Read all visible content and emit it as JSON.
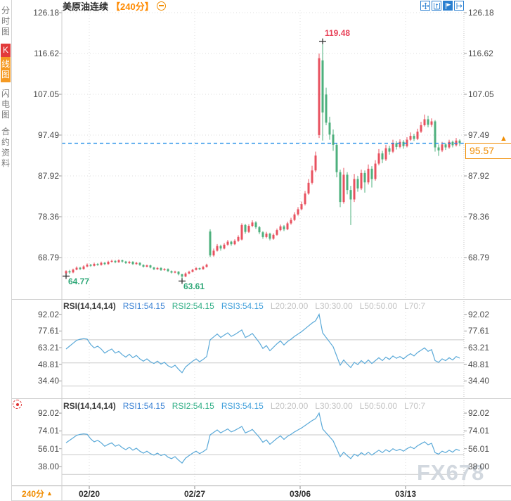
{
  "header": {
    "symbol": "美原油连续",
    "period": "【240分】"
  },
  "sidebar": {
    "tabs": [
      {
        "label": "分时图",
        "active": false
      },
      {
        "label_head": "K",
        "label_rest": "线图",
        "active": true
      },
      {
        "label": "闪电图",
        "active": false
      },
      {
        "label": "合约资料",
        "active": false
      }
    ]
  },
  "toolbar": {
    "icons": [
      "pan",
      "axis-range",
      "draw-tool",
      "exit"
    ]
  },
  "rsi_header": {
    "title": "RSI(14,14,14)",
    "rsi1": "RSI1:54.15",
    "rsi2": "RSI2:54.15",
    "rsi3": "RSI3:54.15",
    "l20": "L20:20.00",
    "l30": "L30:30.00",
    "l50": "L50:50.00",
    "l70": "L70:7"
  },
  "price_tag": {
    "value": "95.57"
  },
  "bottom": {
    "period_label": "240分",
    "dropdown_arrow": "▲"
  },
  "watermark": "FX678",
  "colors": {
    "up": "#e8515f",
    "down": "#4eb07d",
    "rsi_line": "#5aa9d8",
    "dashed_line": "#1f8ce8",
    "accent_orange": "#f08c00",
    "annotation_red": "#e8435a",
    "annotation_green": "#2fa878",
    "tab_red": "#e23b3b",
    "tab_orange": "#f59a23",
    "icon_blue": "#2a7fd0",
    "grid_dot": "#dedede",
    "grid_solid": "#c9c9c9",
    "border": "#cfcfcf",
    "axis_text": "#4a4a4a",
    "marker": "#333333"
  },
  "chart_data": {
    "type": "candlestick",
    "title": "美原油连续 240分 K线图",
    "interval": "240分",
    "price_axis_ticks": [
      126.18,
      116.62,
      107.05,
      97.49,
      87.92,
      78.36,
      68.79
    ],
    "last_price": 95.57,
    "annotations": {
      "high": {
        "label": "119.48",
        "price": 119.48,
        "bar": 73
      },
      "low1": {
        "label": "64.77",
        "price": 64.77,
        "bar": 0
      },
      "low2": {
        "label": "63.61",
        "price": 63.61,
        "bar": 33
      }
    },
    "date_ticks": [
      {
        "label": "02/20",
        "bar": 6.6
      },
      {
        "label": "02/27",
        "bar": 36.6
      },
      {
        "label": "03/06",
        "bar": 66.6
      },
      {
        "label": "03/13",
        "bar": 96.6
      }
    ],
    "candles_ohlc": [
      [
        65.1,
        65.8,
        64.77,
        65.6
      ],
      [
        65.6,
        65.9,
        65.0,
        65.3
      ],
      [
        65.3,
        66.2,
        65.1,
        65.95
      ],
      [
        65.95,
        66.7,
        65.8,
        66.4
      ],
      [
        66.4,
        66.6,
        65.85,
        66.1
      ],
      [
        66.1,
        66.95,
        65.95,
        66.7
      ],
      [
        66.7,
        67.4,
        66.5,
        67.1
      ],
      [
        67.1,
        67.3,
        66.6,
        66.85
      ],
      [
        66.85,
        67.6,
        66.7,
        67.3
      ],
      [
        67.3,
        67.5,
        66.85,
        67.05
      ],
      [
        67.05,
        67.85,
        66.9,
        67.55
      ],
      [
        67.55,
        67.75,
        67.0,
        67.25
      ],
      [
        67.25,
        68.05,
        67.1,
        67.8
      ],
      [
        67.8,
        68.3,
        67.6,
        68.0
      ],
      [
        68.0,
        68.2,
        67.45,
        67.7
      ],
      [
        67.7,
        68.35,
        67.55,
        68.15
      ],
      [
        68.15,
        68.3,
        67.6,
        67.85
      ],
      [
        67.85,
        68.0,
        67.3,
        67.5
      ],
      [
        67.5,
        68.0,
        67.3,
        67.8
      ],
      [
        67.8,
        67.95,
        67.05,
        67.25
      ],
      [
        67.25,
        67.8,
        67.1,
        67.55
      ],
      [
        67.55,
        67.7,
        66.85,
        67.05
      ],
      [
        67.05,
        67.2,
        66.45,
        66.65
      ],
      [
        66.65,
        67.15,
        66.5,
        66.95
      ],
      [
        66.95,
        67.1,
        66.25,
        66.45
      ],
      [
        66.45,
        66.6,
        65.85,
        66.05
      ],
      [
        66.05,
        66.55,
        65.9,
        66.35
      ],
      [
        66.35,
        66.5,
        65.65,
        65.85
      ],
      [
        65.85,
        66.3,
        65.7,
        66.1
      ],
      [
        66.1,
        66.25,
        65.4,
        65.6
      ],
      [
        65.6,
        65.75,
        65.05,
        65.25
      ],
      [
        65.25,
        65.7,
        65.1,
        65.5
      ],
      [
        65.5,
        65.6,
        64.6,
        64.9
      ],
      [
        64.9,
        65.0,
        63.61,
        64.35
      ],
      [
        64.35,
        65.3,
        64.2,
        65.05
      ],
      [
        65.05,
        65.7,
        64.9,
        65.45
      ],
      [
        65.45,
        66.15,
        65.3,
        65.9
      ],
      [
        65.9,
        66.55,
        65.75,
        66.3
      ],
      [
        66.3,
        66.45,
        65.85,
        66.05
      ],
      [
        66.05,
        66.85,
        65.95,
        66.6
      ],
      [
        66.6,
        67.35,
        66.45,
        67.1
      ],
      [
        74.9,
        75.4,
        68.9,
        69.3
      ],
      [
        69.3,
        70.9,
        69.0,
        70.4
      ],
      [
        70.4,
        71.95,
        70.2,
        71.5
      ],
      [
        71.5,
        71.8,
        70.4,
        70.9
      ],
      [
        70.9,
        72.2,
        70.7,
        71.8
      ],
      [
        71.8,
        72.9,
        71.55,
        72.5
      ],
      [
        72.5,
        72.75,
        71.55,
        71.9
      ],
      [
        71.9,
        73.05,
        71.7,
        72.7
      ],
      [
        72.7,
        74.0,
        72.45,
        73.6
      ],
      [
        73.0,
        76.8,
        72.8,
        76.4
      ],
      [
        76.4,
        76.7,
        74.4,
        74.8
      ],
      [
        74.8,
        76.6,
        74.55,
        76.2
      ],
      [
        76.2,
        77.5,
        75.9,
        77.0
      ],
      [
        77.0,
        77.3,
        75.5,
        75.9
      ],
      [
        75.9,
        76.2,
        74.3,
        74.7
      ],
      [
        74.7,
        75.0,
        73.2,
        73.6
      ],
      [
        73.6,
        74.8,
        73.3,
        74.4
      ],
      [
        74.4,
        74.6,
        72.8,
        73.2
      ],
      [
        73.2,
        74.45,
        72.95,
        74.1
      ],
      [
        74.1,
        75.6,
        73.9,
        75.2
      ],
      [
        75.2,
        76.5,
        74.95,
        76.1
      ],
      [
        76.1,
        76.4,
        75.0,
        75.4
      ],
      [
        75.4,
        77.2,
        75.2,
        76.8
      ],
      [
        76.8,
        78.1,
        76.5,
        77.6
      ],
      [
        77.6,
        79.4,
        77.35,
        78.9
      ],
      [
        78.9,
        80.6,
        78.6,
        80.1
      ],
      [
        80.1,
        81.9,
        79.85,
        81.3
      ],
      [
        81.3,
        84.4,
        81.0,
        83.8
      ],
      [
        83.8,
        87.2,
        83.5,
        86.3
      ],
      [
        86.3,
        90.3,
        85.9,
        89.2
      ],
      [
        89.2,
        93.6,
        88.8,
        92.7
      ],
      [
        97.5,
        116.6,
        96.8,
        115.5
      ],
      [
        115.0,
        119.48,
        96.2,
        102.8
      ],
      [
        107.0,
        108.6,
        99.8,
        100.4
      ],
      [
        100.4,
        101.8,
        96.4,
        97.6
      ],
      [
        97.6,
        98.8,
        93.8,
        95.2
      ],
      [
        95.2,
        95.6,
        87.6,
        88.8
      ],
      [
        88.8,
        89.4,
        80.6,
        81.8
      ],
      [
        81.8,
        89.8,
        81.4,
        88.2
      ],
      [
        88.2,
        88.8,
        83.6,
        84.6
      ],
      [
        84.6,
        85.6,
        76.4,
        82.4
      ],
      [
        82.4,
        88.4,
        81.8,
        87.2
      ],
      [
        87.2,
        87.9,
        84.2,
        85.0
      ],
      [
        85.0,
        89.4,
        84.6,
        88.6
      ],
      [
        88.6,
        89.2,
        84.0,
        86.4
      ],
      [
        86.4,
        90.6,
        85.9,
        89.6
      ],
      [
        89.6,
        90.2,
        85.2,
        87.2
      ],
      [
        87.2,
        91.6,
        86.8,
        90.8
      ],
      [
        90.8,
        94.2,
        90.4,
        93.2
      ],
      [
        93.2,
        93.8,
        90.9,
        91.8
      ],
      [
        91.8,
        95.2,
        91.4,
        94.4
      ],
      [
        94.4,
        95.0,
        92.9,
        93.6
      ],
      [
        93.6,
        96.4,
        93.3,
        95.6
      ],
      [
        95.6,
        96.1,
        94.1,
        94.7
      ],
      [
        94.7,
        96.5,
        94.4,
        95.9
      ],
      [
        95.9,
        96.3,
        94.3,
        94.9
      ],
      [
        94.9,
        97.0,
        94.6,
        96.4
      ],
      [
        96.4,
        98.1,
        96.1,
        97.3
      ],
      [
        97.3,
        97.8,
        96.1,
        96.6
      ],
      [
        96.6,
        99.0,
        96.3,
        98.3
      ],
      [
        98.3,
        100.6,
        98.0,
        99.8
      ],
      [
        99.8,
        102.3,
        99.5,
        101.2
      ],
      [
        101.2,
        102.0,
        99.3,
        99.9
      ],
      [
        99.9,
        101.4,
        99.4,
        100.7
      ],
      [
        100.7,
        101.0,
        93.6,
        94.6
      ],
      [
        94.6,
        95.3,
        92.6,
        93.9
      ],
      [
        93.9,
        95.9,
        93.5,
        95.3
      ],
      [
        95.3,
        95.7,
        94.0,
        94.6
      ],
      [
        94.6,
        96.4,
        94.3,
        95.9
      ],
      [
        95.9,
        96.2,
        94.6,
        95.1
      ],
      [
        95.1,
        96.8,
        94.8,
        96.2
      ],
      [
        96.2,
        96.5,
        94.9,
        95.57
      ]
    ],
    "rsi": {
      "values": [
        62,
        64.5,
        67,
        69.5,
        70.5,
        71,
        70.6,
        66,
        63,
        64.5,
        62,
        58.5,
        60.5,
        62,
        58.5,
        60,
        57,
        55,
        57.5,
        54.5,
        56.5,
        53.5,
        51.5,
        53.5,
        51,
        49.5,
        51.5,
        49,
        50.5,
        47.5,
        46,
        48,
        44.5,
        41.5,
        46.5,
        49,
        51.5,
        53.5,
        51,
        53,
        55.5,
        70,
        72.5,
        75,
        72,
        74,
        76,
        73,
        74.5,
        76.5,
        78.5,
        72,
        73.5,
        75.5,
        71.5,
        67.5,
        62.5,
        65,
        60.5,
        63.5,
        66.5,
        69,
        65.5,
        68.5,
        70.5,
        73,
        75,
        77,
        79.5,
        82,
        84.5,
        86.5,
        92,
        76,
        72,
        68,
        64,
        56,
        48,
        52.5,
        49,
        46,
        50.5,
        48.5,
        52,
        49.5,
        52.5,
        49.5,
        52,
        54.5,
        52,
        55,
        53,
        56,
        54,
        55.5,
        53.5,
        56,
        58,
        56,
        59,
        61,
        63,
        60,
        61.5,
        52,
        50.5,
        53.5,
        52,
        54.5,
        52.5,
        55.5,
        54.15
      ],
      "panel1_ticks": [
        92.02,
        77.61,
        63.21,
        48.81,
        34.4
      ],
      "panel2_ticks": [
        92.02,
        74.01,
        56.01,
        38.0
      ],
      "guide_levels": [
        70,
        50,
        30
      ]
    }
  }
}
